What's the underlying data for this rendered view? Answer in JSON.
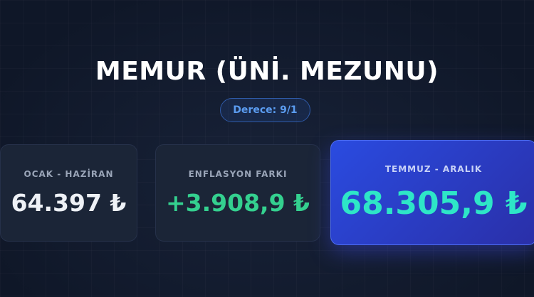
{
  "header": {
    "title": "MEMUR (ÜNİ. MEZUNU)",
    "badge": "Derece: 9/1"
  },
  "cards": [
    {
      "label": "OCAK - HAZİRAN",
      "value": "64.397 ₺"
    },
    {
      "label": "ENFLASYON FARKI",
      "value": "+3.908,9 ₺"
    },
    {
      "label": "TEMMUZ - ARALIK",
      "value": "68.305,9 ₺"
    }
  ],
  "colors": {
    "background": "#111a2c",
    "accent": "#2a4be0",
    "positive": "#34d08f",
    "highlight": "#2ee6c7",
    "badge": "#5b9cf0"
  }
}
